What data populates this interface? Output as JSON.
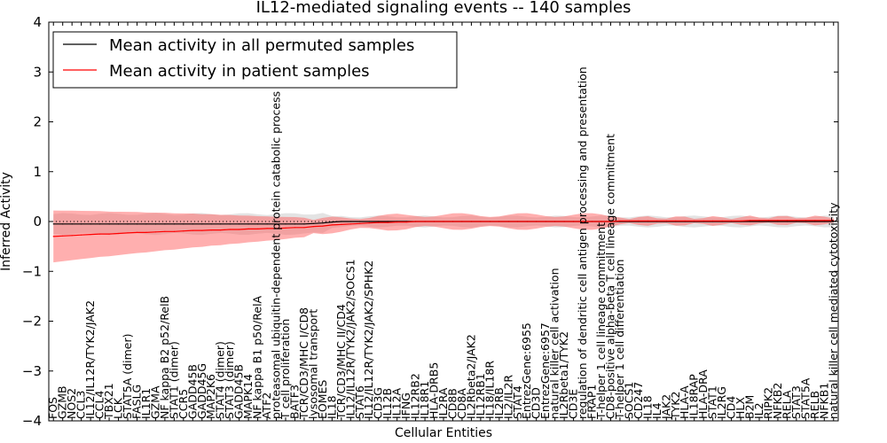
{
  "chart_data": {
    "type": "line",
    "title": "IL12-mediated signaling events -- 140 samples",
    "xlabel": "Cellular Entities",
    "ylabel": "Inferred Activity",
    "ylim": [
      -4,
      4
    ],
    "yticks": [
      -4,
      -3,
      -2,
      -1,
      0,
      1,
      2,
      3,
      4
    ],
    "ytick_labels": [
      "−4",
      "−3",
      "−2",
      "−1",
      "0",
      "1",
      "2",
      "3",
      "4"
    ],
    "grid": false,
    "legend_position": "top-left",
    "categories": [
      "FOS",
      "GZMB",
      "NOS2",
      "CCL3",
      "IL12/IL12R/TYK2/JAK2",
      "CCL4",
      "TBX21",
      "LCK",
      "STAT5A (dimer)",
      "FASLG",
      "IL1R1",
      "GZMA",
      "NF kappa B2 p52/RelB",
      "STAT1 (dimer)",
      "CCR5",
      "GADD45B",
      "GADD45G",
      "MAP2K6",
      "STAT4 (dimer)",
      "STAT3 (dimer)",
      "GADD45B",
      "MAPK14",
      "NF kappa B1 p50/RelA",
      "ATF2",
      "proteasomal ubiquitin-dependent protein catabolic process",
      "T cell proliferation",
      "BATF3",
      "TCR/CD3/MHC I/CD8",
      "lysosomal transport",
      "EOMES",
      "IL18",
      "TCR/CD3/MHC II/CD4",
      "IL12/IL12R/TYK2/JAK2/SOCS1",
      "STAT6",
      "IL12/IL12R/TYK2/JAK2/SPHK2",
      "CD3G",
      "IL12B",
      "IL12A",
      "IFNG",
      "IL12RB2",
      "IL18R1",
      "HLA-DRB5",
      "IL2RA",
      "CD8B",
      "CD8A",
      "IL2Rbeta2/JAK2",
      "IL12RB1",
      "IL18/IL18R",
      "IL2RB",
      "IL2/IL2R",
      "STAT4",
      "EntrezGene:6955",
      "CD3D",
      "EntrezGene:6957",
      "natural killer cell activation",
      "IL2Rbeta1/TYK2",
      "CD3E",
      "regulation of dendritic cell antigen processing and presentation",
      "FRAP1",
      "T-helper 1 cell lineage commitment",
      "CD8-positive alpha-beta T cell lineage commitment",
      "T-helper 1 cell differentiation",
      "SOCS1",
      "CD247",
      "IL18",
      "IL4",
      "JAK2",
      "TYK2",
      "HLA-A",
      "IL18RAP",
      "HLA-DRA",
      "STAT1",
      "IL2RG",
      "CD4",
      "HLX",
      "B2M",
      "IL2",
      "RIPK2",
      "NFKB2",
      "RELA",
      "STAT3",
      "STAT5A",
      "RELB",
      "NFKB1",
      "natural killer cell mediated cytotoxicity"
    ],
    "series": [
      {
        "name": "Mean activity in all permuted samples",
        "color": "#000000",
        "values": [
          -0.05,
          -0.05,
          -0.05,
          -0.05,
          -0.05,
          -0.05,
          -0.05,
          -0.05,
          -0.05,
          -0.05,
          -0.05,
          -0.05,
          -0.05,
          -0.05,
          -0.05,
          -0.05,
          -0.05,
          -0.05,
          -0.05,
          -0.05,
          -0.05,
          -0.05,
          -0.05,
          -0.05,
          -0.05,
          -0.05,
          -0.05,
          -0.05,
          -0.04,
          -0.03,
          -0.01,
          0.0,
          0.0,
          0.0,
          0.0,
          0.0,
          0.0,
          0.0,
          0.0,
          0.0,
          0.0,
          0.0,
          0.0,
          0.0,
          0.0,
          0.0,
          0.0,
          0.0,
          0.0,
          0.0,
          0.0,
          0.0,
          0.0,
          0.0,
          0.0,
          0.0,
          0.0,
          0.0,
          0.0,
          0.0,
          0.0,
          0.0,
          0.0,
          0.0,
          0.0,
          0.0,
          0.0,
          0.0,
          0.0,
          0.0,
          0.0,
          0.0,
          0.0,
          0.0,
          0.0,
          0.0,
          0.0,
          0.0,
          0.0,
          0.0,
          0.0,
          0.0,
          0.0,
          0.0,
          0.0
        ]
      },
      {
        "name": "Mean activity in patient samples",
        "color": "#ff0000",
        "values": [
          -0.3,
          -0.29,
          -0.28,
          -0.27,
          -0.26,
          -0.25,
          -0.25,
          -0.24,
          -0.23,
          -0.22,
          -0.22,
          -0.21,
          -0.2,
          -0.2,
          -0.19,
          -0.18,
          -0.18,
          -0.17,
          -0.17,
          -0.16,
          -0.16,
          -0.15,
          -0.15,
          -0.14,
          -0.14,
          -0.13,
          -0.12,
          -0.12,
          -0.1,
          -0.09,
          -0.07,
          -0.06,
          -0.05,
          -0.04,
          -0.03,
          -0.02,
          -0.02,
          -0.01,
          -0.01,
          0.0,
          0.0,
          0.0,
          0.0,
          0.0,
          0.0,
          0.0,
          0.0,
          0.0,
          0.0,
          0.0,
          0.0,
          0.0,
          0.0,
          0.0,
          0.0,
          0.0,
          0.0,
          0.0,
          0.0,
          0.0,
          0.0,
          0.01,
          0.01,
          0.01,
          0.01,
          0.01,
          0.01,
          0.01,
          0.01,
          0.01,
          0.01,
          0.01,
          0.01,
          0.01,
          0.01,
          0.02,
          0.02,
          0.02,
          0.02,
          0.02,
          0.02,
          0.02,
          0.02,
          0.02,
          0.02
        ]
      }
    ]
  }
}
